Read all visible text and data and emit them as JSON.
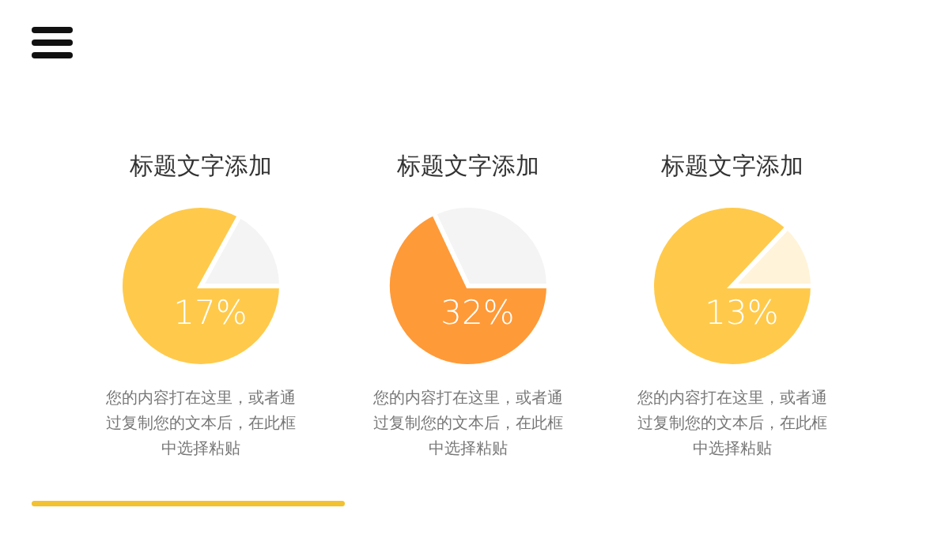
{
  "chart_data": [
    {
      "type": "pie",
      "title": "标题文字添加",
      "categories": [
        null,
        null
      ],
      "values": [
        17,
        83
      ],
      "colors": [
        "#f4f4f4",
        "#ffca4b"
      ],
      "annotations": [
        "17%",
        "您的内容打在这里，或者通过复制您的文本后，在此框中选择粘贴"
      ]
    },
    {
      "type": "pie",
      "title": "标题文字添加",
      "categories": [
        null,
        null
      ],
      "values": [
        32,
        68
      ],
      "colors": [
        "#f4f4f4",
        "#ff9a38"
      ],
      "annotations": [
        "32%",
        "您的内容打在这里，或者通过复制您的文本后，在此框中选择粘贴"
      ]
    },
    {
      "type": "pie",
      "title": "标题文字添加",
      "categories": [
        null,
        null
      ],
      "values": [
        13,
        87
      ],
      "colors": [
        "#fff3d9",
        "#ffca4b"
      ],
      "annotations": [
        "13%",
        "您的内容打在这里，或者通过复制您的文本后，在此框中选择粘贴"
      ]
    }
  ]
}
